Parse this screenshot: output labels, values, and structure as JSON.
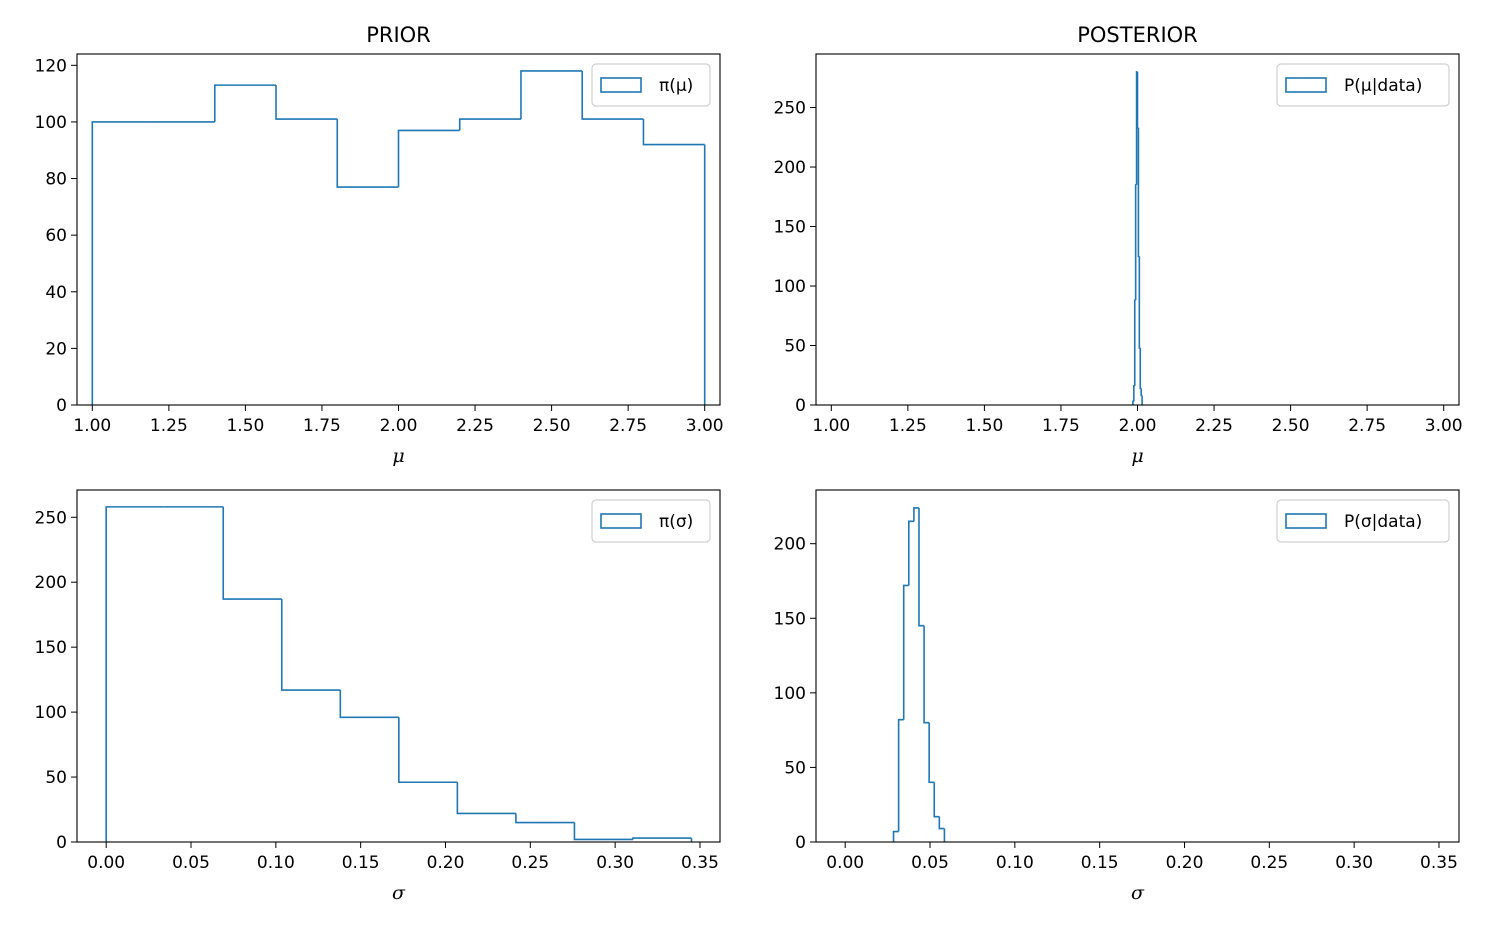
{
  "chart_data": [
    {
      "type": "histogram",
      "title": "PRIOR",
      "xlabel": "μ",
      "ylabel": "",
      "xlim": [
        0.95,
        3.05
      ],
      "ylim": [
        0,
        124
      ],
      "xticks": [
        1.0,
        1.25,
        1.5,
        1.75,
        2.0,
        2.25,
        2.5,
        2.75,
        3.0
      ],
      "xtick_labels": [
        "1.00",
        "1.25",
        "1.50",
        "1.75",
        "2.00",
        "2.25",
        "2.50",
        "2.75",
        "3.00"
      ],
      "yticks": [
        0,
        20,
        40,
        60,
        80,
        100,
        120
      ],
      "ytick_labels": [
        "0",
        "20",
        "40",
        "60",
        "80",
        "100",
        "120"
      ],
      "bin_edges": [
        1.0,
        1.2,
        1.4,
        1.6,
        1.8,
        2.0,
        2.2,
        2.4,
        2.6,
        2.8,
        3.0
      ],
      "counts": [
        100,
        100,
        113,
        101,
        77,
        97,
        101,
        118,
        101,
        92
      ],
      "legend": "π(μ)",
      "legend_position": "top-right",
      "color": "#1f77b4"
    },
    {
      "type": "histogram",
      "title": "POSTERIOR",
      "xlabel": "μ",
      "ylabel": "",
      "xlim": [
        0.95,
        3.05
      ],
      "ylim": [
        0,
        295
      ],
      "xticks": [
        1.0,
        1.25,
        1.5,
        1.75,
        2.0,
        2.25,
        2.5,
        2.75,
        3.0
      ],
      "xtick_labels": [
        "1.00",
        "1.25",
        "1.50",
        "1.75",
        "2.00",
        "2.25",
        "2.50",
        "2.75",
        "3.00"
      ],
      "yticks": [
        0,
        50,
        100,
        150,
        200,
        250
      ],
      "ytick_labels": [
        "0",
        "50",
        "100",
        "150",
        "200",
        "250"
      ],
      "bin_edges": [
        1.985,
        1.988,
        1.991,
        1.994,
        1.997,
        2.0,
        2.003,
        2.006,
        2.009,
        2.012,
        2.015
      ],
      "counts": [
        3,
        16,
        88,
        185,
        280,
        233,
        125,
        48,
        14,
        8
      ],
      "legend": "P(μ|data)",
      "legend_position": "top-right",
      "color": "#1f77b4"
    },
    {
      "type": "histogram",
      "title": "",
      "xlabel": "σ",
      "ylabel": "",
      "xlim": [
        -0.0172,
        0.3618
      ],
      "ylim": [
        0,
        271
      ],
      "xticks": [
        0.0,
        0.05,
        0.1,
        0.15,
        0.2,
        0.25,
        0.3,
        0.35
      ],
      "xtick_labels": [
        "0.00",
        "0.05",
        "0.10",
        "0.15",
        "0.20",
        "0.25",
        "0.30",
        "0.35"
      ],
      "yticks": [
        0,
        50,
        100,
        150,
        200,
        250
      ],
      "ytick_labels": [
        "0",
        "50",
        "100",
        "150",
        "200",
        "250"
      ],
      "bin_edges": [
        0.0,
        0.0345,
        0.069,
        0.1035,
        0.138,
        0.1725,
        0.207,
        0.2415,
        0.276,
        0.3105,
        0.345
      ],
      "counts": [
        258,
        258,
        187,
        117,
        96,
        46,
        22,
        15,
        2,
        3
      ],
      "legend": "π(σ)",
      "legend_position": "top-right",
      "color": "#1f77b4"
    },
    {
      "type": "histogram",
      "title": "",
      "xlabel": "σ",
      "ylabel": "",
      "xlim": [
        -0.0172,
        0.3618
      ],
      "ylim": [
        0,
        236
      ],
      "xticks": [
        0.0,
        0.05,
        0.1,
        0.15,
        0.2,
        0.25,
        0.3,
        0.35
      ],
      "xtick_labels": [
        "0.00",
        "0.05",
        "0.10",
        "0.15",
        "0.20",
        "0.25",
        "0.30",
        "0.35"
      ],
      "yticks": [
        0,
        50,
        100,
        150,
        200
      ],
      "ytick_labels": [
        "0",
        "50",
        "100",
        "150",
        "200"
      ],
      "bin_edges": [
        0.0285,
        0.0315,
        0.0345,
        0.0375,
        0.0405,
        0.0435,
        0.0465,
        0.0495,
        0.0525,
        0.0555,
        0.0585
      ],
      "counts": [
        7,
        82,
        172,
        215,
        224,
        145,
        80,
        40,
        17,
        9
      ],
      "legend": "P(σ|data)",
      "legend_position": "top-right",
      "color": "#1f77b4"
    }
  ]
}
